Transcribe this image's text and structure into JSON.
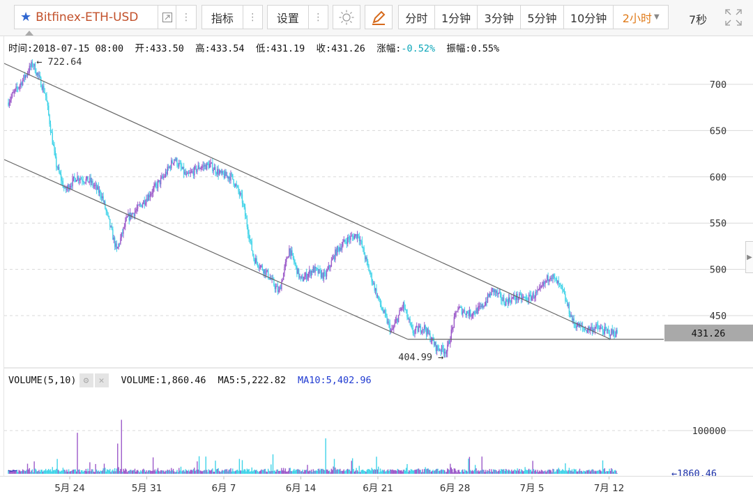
{
  "toolbar": {
    "symbol": "Bitfinex-ETH-USD",
    "indicators_label": "指标",
    "settings_label": "设置",
    "periods": [
      "分时",
      "1分钟",
      "3分钟",
      "5分钟",
      "10分钟"
    ],
    "active_period": "2小时",
    "countdown": "7秒",
    "dots": "⋮"
  },
  "info": {
    "time_label": "时间:",
    "time": "2018-07-15 08:00",
    "open_label": "开:",
    "open": "433.50",
    "high_label": "高:",
    "high": "433.54",
    "low_label": "低:",
    "low": "431.19",
    "close_label": "收:",
    "close": "431.26",
    "change_label": "涨幅:",
    "change": "-0.52%",
    "amplitude_label": "振幅:",
    "amplitude": "0.55%"
  },
  "volume_info": {
    "indicator": "VOLUME(5,10)",
    "volume": "VOLUME:1,860.46",
    "ma5": "MA5:5,222.82",
    "ma10": "MA10:5,402.96"
  },
  "colors": {
    "up": "#9b59c9",
    "down": "#3fd3e8",
    "ma5_line": "#1b1b3a",
    "ma10_line": "#2b3fc4",
    "trendline": "#666666",
    "price_tag_bg": "#a9a9a9",
    "change_negative": "#0aa5b8",
    "symbol": "#c2502a",
    "star": "#2f66d0",
    "active_period": "#e07b1a"
  },
  "chart_data": {
    "type": "candlestick",
    "price_ticks": [
      450,
      500,
      550,
      600,
      650,
      700
    ],
    "volume_ticks": [
      100000
    ],
    "x_ticks": [
      "5月 24",
      "5月 31",
      "6月 7",
      "6月 14",
      "6月 21",
      "6月 28",
      "7月 5",
      "7月 12"
    ],
    "ylim": [
      390,
      735
    ],
    "annotations": {
      "high": "722.64",
      "low": "404.99",
      "last_price": "431.26",
      "last_volume": "1860.46"
    },
    "price_path": [
      {
        "d": 0.0,
        "p": 680
      },
      {
        "d": 1.2,
        "p": 702
      },
      {
        "d": 2.2,
        "p": 722.64
      },
      {
        "d": 3.3,
        "p": 690
      },
      {
        "d": 4.2,
        "p": 615
      },
      {
        "d": 5.0,
        "p": 585
      },
      {
        "d": 6.0,
        "p": 600
      },
      {
        "d": 7.2,
        "p": 595
      },
      {
        "d": 8.2,
        "p": 580
      },
      {
        "d": 9.5,
        "p": 520
      },
      {
        "d": 10.4,
        "p": 555
      },
      {
        "d": 11.3,
        "p": 565
      },
      {
        "d": 12.6,
        "p": 585
      },
      {
        "d": 13.6,
        "p": 600
      },
      {
        "d": 14.5,
        "p": 620
      },
      {
        "d": 15.6,
        "p": 600
      },
      {
        "d": 16.6,
        "p": 610
      },
      {
        "d": 17.6,
        "p": 613
      },
      {
        "d": 18.6,
        "p": 602
      },
      {
        "d": 19.5,
        "p": 600
      },
      {
        "d": 20.4,
        "p": 575
      },
      {
        "d": 21.4,
        "p": 512
      },
      {
        "d": 22.6,
        "p": 495
      },
      {
        "d": 23.6,
        "p": 475
      },
      {
        "d": 24.5,
        "p": 522
      },
      {
        "d": 25.5,
        "p": 488
      },
      {
        "d": 26.6,
        "p": 500
      },
      {
        "d": 27.6,
        "p": 492
      },
      {
        "d": 28.6,
        "p": 520
      },
      {
        "d": 29.5,
        "p": 532
      },
      {
        "d": 30.5,
        "p": 538
      },
      {
        "d": 31.4,
        "p": 500
      },
      {
        "d": 32.4,
        "p": 462
      },
      {
        "d": 33.4,
        "p": 432
      },
      {
        "d": 34.4,
        "p": 462
      },
      {
        "d": 35.2,
        "p": 432
      },
      {
        "d": 36.2,
        "p": 438
      },
      {
        "d": 37.3,
        "p": 415
      },
      {
        "d": 38.2,
        "p": 412
      },
      {
        "d": 39.1,
        "p": 458
      },
      {
        "d": 40.2,
        "p": 452
      },
      {
        "d": 41.2,
        "p": 458
      },
      {
        "d": 42.2,
        "p": 478
      },
      {
        "d": 43.2,
        "p": 465
      },
      {
        "d": 44.2,
        "p": 470
      },
      {
        "d": 45.2,
        "p": 468
      },
      {
        "d": 46.2,
        "p": 475
      },
      {
        "d": 47.2,
        "p": 495
      },
      {
        "d": 48.2,
        "p": 478
      },
      {
        "d": 49.2,
        "p": 442
      },
      {
        "d": 50.2,
        "p": 435
      },
      {
        "d": 51.2,
        "p": 437
      },
      {
        "d": 52.2,
        "p": 432
      },
      {
        "d": 53.0,
        "p": 431.26
      }
    ]
  }
}
